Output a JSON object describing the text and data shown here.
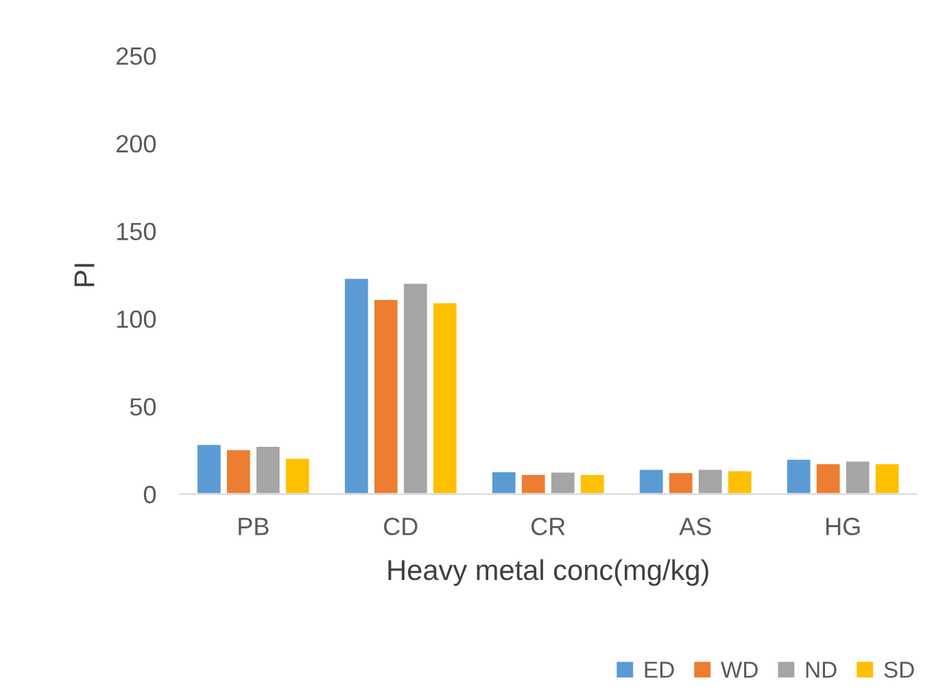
{
  "chart_data": {
    "type": "bar",
    "xlabel": "Heavy metal conc(mg/kg)",
    "ylabel": "PI",
    "categories": [
      "PB",
      "CD",
      "CR",
      "AS",
      "HG"
    ],
    "series": [
      {
        "name": "ED",
        "color": "#5b9bd5",
        "values": [
          28.6,
          123.3,
          13,
          14.4,
          20.2
        ]
      },
      {
        "name": "WD",
        "color": "#ed7d31",
        "values": [
          25.7,
          111.3,
          11.5,
          12.6,
          17.6
        ]
      },
      {
        "name": "ND",
        "color": "#a5a5a5",
        "values": [
          27.5,
          120.5,
          12.8,
          14.4,
          19.1
        ]
      },
      {
        "name": "SD",
        "color": "#ffc000",
        "values": [
          20.7,
          109.4,
          11.5,
          13.6,
          17.6
        ]
      }
    ],
    "ylim": [
      0,
      250
    ],
    "yticks": [
      0,
      50,
      100,
      150,
      200,
      250
    ],
    "grid": false,
    "legend": "bottom right"
  }
}
